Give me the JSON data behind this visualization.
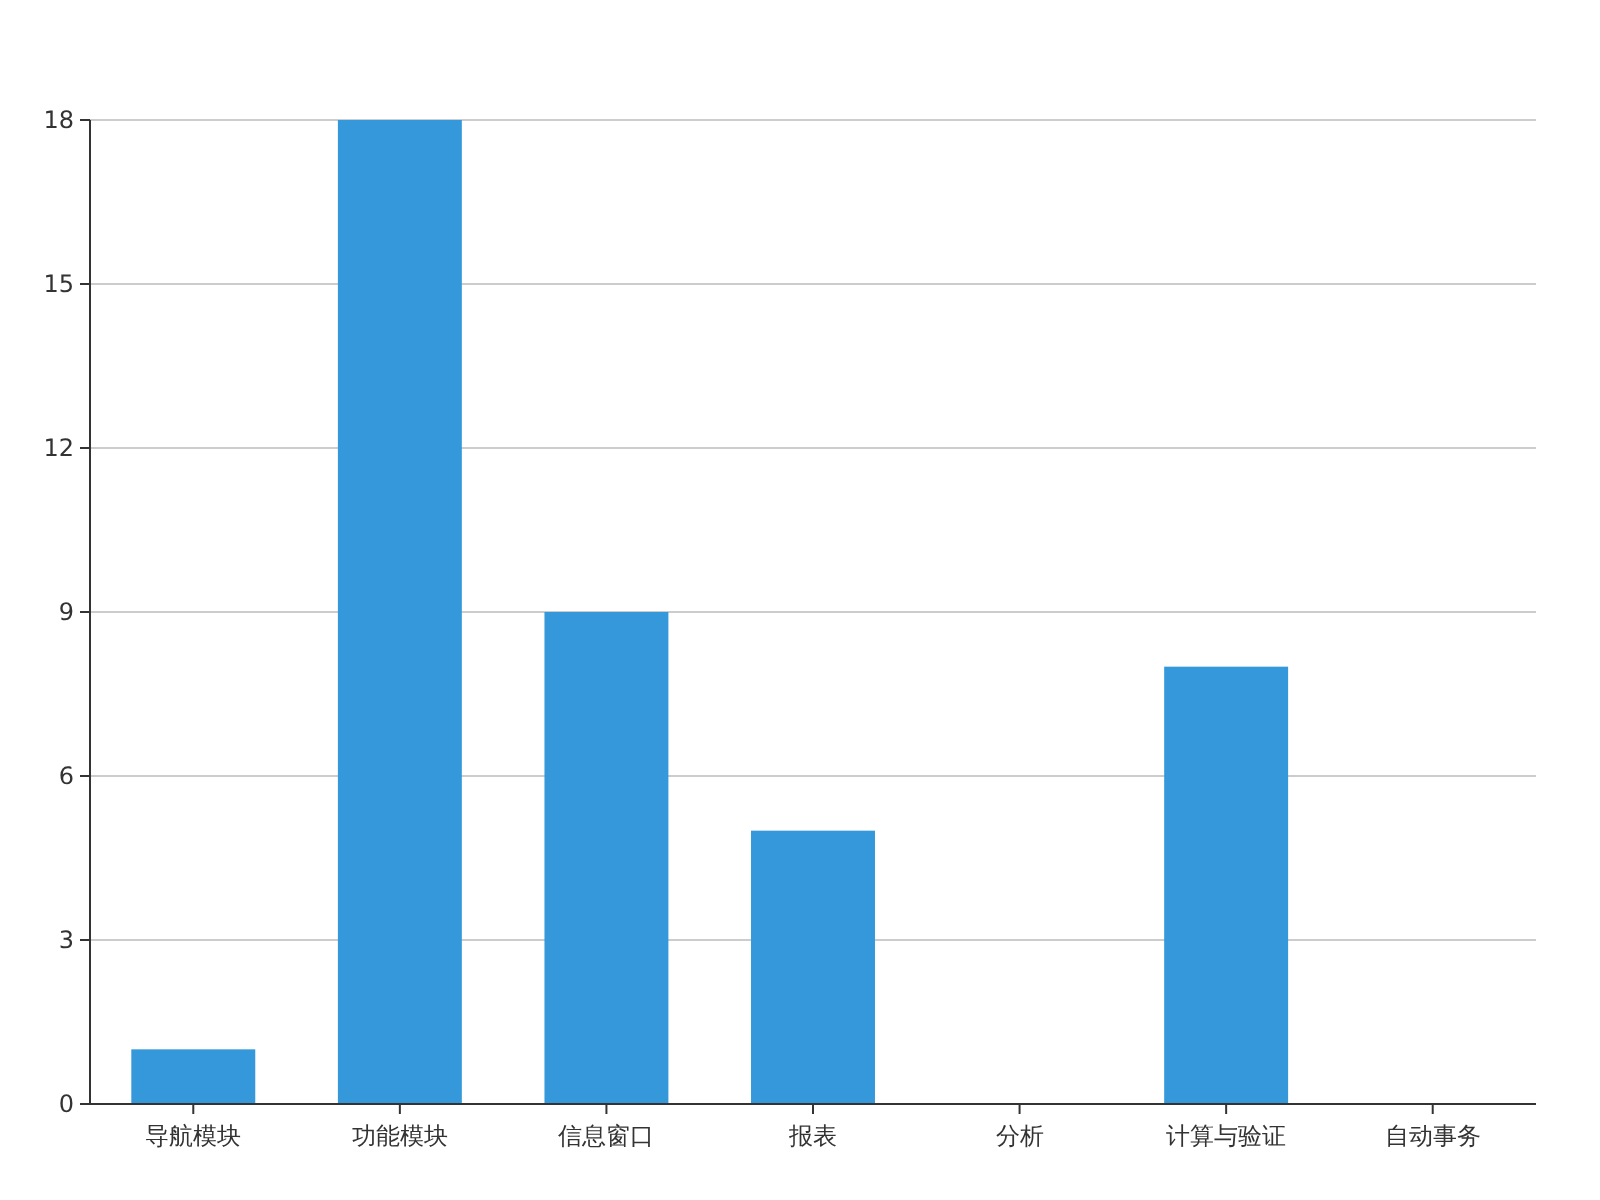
{
  "chart_data": {
    "type": "bar",
    "categories": [
      "导航模块",
      "功能模块",
      "信息窗口",
      "报表",
      "分析",
      "计算与验证",
      "自动事务"
    ],
    "values": [
      1,
      18,
      9,
      5,
      0,
      8,
      0
    ],
    "color": "#3498db",
    "ylim": [
      0,
      18
    ],
    "yticks": [
      0,
      3,
      6,
      9,
      12,
      15,
      18
    ],
    "grid": "y"
  }
}
